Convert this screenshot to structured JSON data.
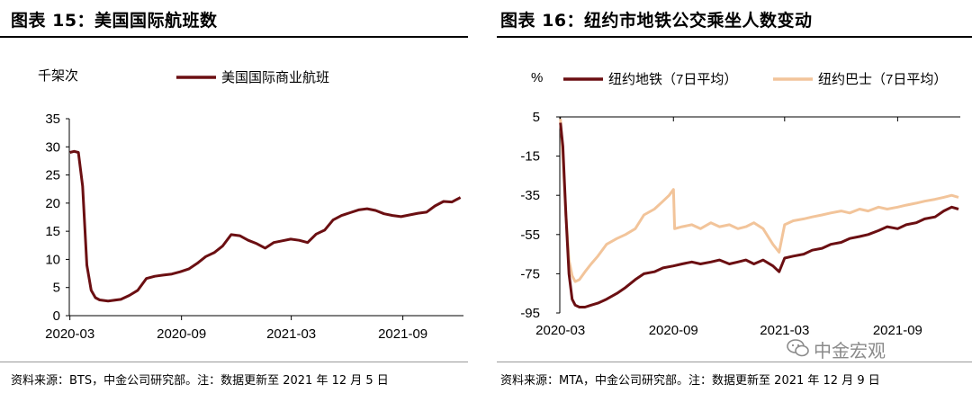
{
  "left": {
    "title": "图表 15：美国国际航班数",
    "unit": "千架次",
    "source": "资料来源：BTS，中金公司研究部。注：数据更新至 2021 年 12 月 5 日",
    "color": "#6b0f12",
    "chart_data": {
      "type": "line",
      "ylim": [
        0,
        35
      ],
      "yticks": [
        "0",
        "5",
        "10",
        "15",
        "20",
        "25",
        "30",
        "35"
      ],
      "xticks": [
        "2020-03",
        "2020-09",
        "2021-03",
        "2021-09"
      ],
      "series": [
        {
          "name": "美国国际商业航班",
          "x": [
            "2020-03-01",
            "2020-03-08",
            "2020-03-15",
            "2020-03-22",
            "2020-03-29",
            "2020-04-05",
            "2020-04-12",
            "2020-04-19",
            "2020-04-26",
            "2020-05-03",
            "2020-05-10",
            "2020-05-24",
            "2020-06-07",
            "2020-06-21",
            "2020-07-05",
            "2020-07-19",
            "2020-08-02",
            "2020-08-16",
            "2020-08-30",
            "2020-09-13",
            "2020-09-27",
            "2020-10-11",
            "2020-10-25",
            "2020-11-08",
            "2020-11-22",
            "2020-12-06",
            "2020-12-20",
            "2021-01-03",
            "2021-01-17",
            "2021-01-31",
            "2021-02-14",
            "2021-02-28",
            "2021-03-14",
            "2021-03-28",
            "2021-04-11",
            "2021-04-25",
            "2021-05-09",
            "2021-05-23",
            "2021-06-06",
            "2021-06-20",
            "2021-07-04",
            "2021-07-18",
            "2021-08-01",
            "2021-08-15",
            "2021-08-29",
            "2021-09-12",
            "2021-09-26",
            "2021-10-10",
            "2021-10-24",
            "2021-11-07",
            "2021-11-21",
            "2021-12-05"
          ],
          "values": [
            29.0,
            29.2,
            29.0,
            23.0,
            9.0,
            4.5,
            3.2,
            2.8,
            2.7,
            2.6,
            2.7,
            2.9,
            3.6,
            4.5,
            6.6,
            7.0,
            7.2,
            7.4,
            7.8,
            8.3,
            9.3,
            10.5,
            11.2,
            12.4,
            14.4,
            14.2,
            13.4,
            12.8,
            12.0,
            13.0,
            13.3,
            13.6,
            13.4,
            13.0,
            14.5,
            15.2,
            17.0,
            17.8,
            18.3,
            18.8,
            19.0,
            18.7,
            18.1,
            17.8,
            17.6,
            17.9,
            18.2,
            18.4,
            19.5,
            20.3,
            20.2,
            21.0
          ]
        }
      ]
    }
  },
  "right": {
    "title": "图表 16：纽约市地铁公交乘坐人数变动",
    "unit": "%",
    "source": "资料来源：MTA，中金公司研究部。注：数据更新至 2021 年 12 月 9 日",
    "watermark": "中金宏观",
    "chart_data": {
      "type": "line",
      "ylim": [
        -95,
        5
      ],
      "yticks": [
        "5",
        "-15",
        "-35",
        "-55",
        "-75",
        "-95"
      ],
      "xticks": [
        "2020-03",
        "2020-09",
        "2021-03",
        "2021-09"
      ],
      "series": [
        {
          "name": "纽约地铁（7日平均）",
          "color": "#6b0f12",
          "x": [
            "2020-03-01",
            "2020-03-05",
            "2020-03-10",
            "2020-03-15",
            "2020-03-20",
            "2020-03-25",
            "2020-04-01",
            "2020-04-10",
            "2020-04-20",
            "2020-05-01",
            "2020-05-15",
            "2020-06-01",
            "2020-06-15",
            "2020-07-01",
            "2020-07-15",
            "2020-08-01",
            "2020-08-15",
            "2020-09-01",
            "2020-09-15",
            "2020-10-01",
            "2020-10-15",
            "2020-11-01",
            "2020-11-15",
            "2020-12-01",
            "2020-12-15",
            "2020-12-28",
            "2021-01-10",
            "2021-01-25",
            "2021-02-10",
            "2021-02-20",
            "2021-03-01",
            "2021-03-15",
            "2021-04-01",
            "2021-04-15",
            "2021-05-01",
            "2021-05-15",
            "2021-06-01",
            "2021-06-15",
            "2021-07-01",
            "2021-07-15",
            "2021-08-01",
            "2021-08-15",
            "2021-09-01",
            "2021-09-15",
            "2021-10-01",
            "2021-10-15",
            "2021-11-01",
            "2021-11-15",
            "2021-11-28",
            "2021-12-09"
          ],
          "values": [
            2,
            -10,
            -45,
            -75,
            -88,
            -91,
            -92,
            -92,
            -91,
            -90,
            -88,
            -85,
            -82,
            -78,
            -75,
            -74,
            -72,
            -71,
            -70,
            -69,
            -70,
            -69,
            -68,
            -70,
            -69,
            -68,
            -70,
            -68,
            -71,
            -74,
            -67,
            -66,
            -65,
            -63,
            -62,
            -60,
            -59,
            -57,
            -56,
            -55,
            -53,
            -51,
            -52,
            -50,
            -49,
            -47,
            -46,
            -43,
            -41,
            -42
          ]
        },
        {
          "name": "纽约巴士（7日平均）",
          "color": "#f2c49a",
          "x": [
            "2020-03-01",
            "2020-03-05",
            "2020-03-10",
            "2020-03-15",
            "2020-03-20",
            "2020-03-25",
            "2020-04-01",
            "2020-04-10",
            "2020-04-20",
            "2020-05-01",
            "2020-05-15",
            "2020-06-01",
            "2020-06-15",
            "2020-07-01",
            "2020-07-15",
            "2020-08-01",
            "2020-08-15",
            "2020-08-25",
            "2020-09-01",
            "2020-09-03",
            "2020-09-15",
            "2020-10-01",
            "2020-10-15",
            "2020-11-01",
            "2020-11-15",
            "2020-12-01",
            "2020-12-15",
            "2020-12-28",
            "2021-01-10",
            "2021-01-25",
            "2021-02-10",
            "2021-02-20",
            "2021-03-01",
            "2021-03-15",
            "2021-04-01",
            "2021-04-15",
            "2021-05-01",
            "2021-05-15",
            "2021-06-01",
            "2021-06-15",
            "2021-07-01",
            "2021-07-15",
            "2021-08-01",
            "2021-08-15",
            "2021-09-01",
            "2021-09-15",
            "2021-10-01",
            "2021-10-15",
            "2021-11-01",
            "2021-11-15",
            "2021-11-28",
            "2021-12-09"
          ],
          "values": [
            4,
            -15,
            -45,
            -68,
            -76,
            -79,
            -78,
            -74,
            -70,
            -66,
            -60,
            -57,
            -55,
            -52,
            -45,
            -42,
            -38,
            -35,
            -32,
            -52,
            -51,
            -50,
            -52,
            -49,
            -51,
            -50,
            -52,
            -51,
            -49,
            -52,
            -60,
            -64,
            -50,
            -48,
            -47,
            -46,
            -45,
            -44,
            -43,
            -44,
            -42,
            -43,
            -41,
            -42,
            -41,
            -40,
            -39,
            -38,
            -37,
            -36,
            -35,
            -36
          ]
        }
      ]
    }
  }
}
